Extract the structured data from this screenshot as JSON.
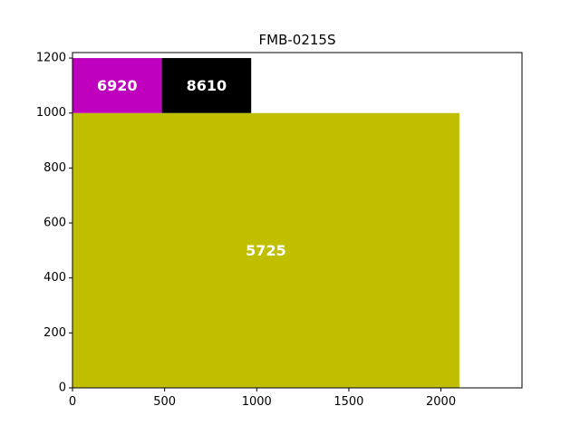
{
  "chart_data": {
    "type": "other",
    "title": "FMB-0215S",
    "xlabel": "",
    "ylabel": "",
    "xlim": [
      0,
      2440
    ],
    "ylim": [
      0,
      1220
    ],
    "x_ticks": [
      0,
      500,
      1000,
      1500,
      2000
    ],
    "y_ticks": [
      0,
      200,
      400,
      600,
      800,
      1000,
      1200
    ],
    "grid": false,
    "legend": "none",
    "rectangles": [
      {
        "label": "5725",
        "x": 0,
        "y": 0,
        "width": 2100,
        "height": 1000,
        "color": "#bfbf00"
      },
      {
        "label": "6920",
        "x": 0,
        "y": 1000,
        "width": 485,
        "height": 200,
        "color": "#bf00bf"
      },
      {
        "label": "8610",
        "x": 485,
        "y": 1000,
        "width": 485,
        "height": 200,
        "color": "#000000"
      }
    ]
  }
}
